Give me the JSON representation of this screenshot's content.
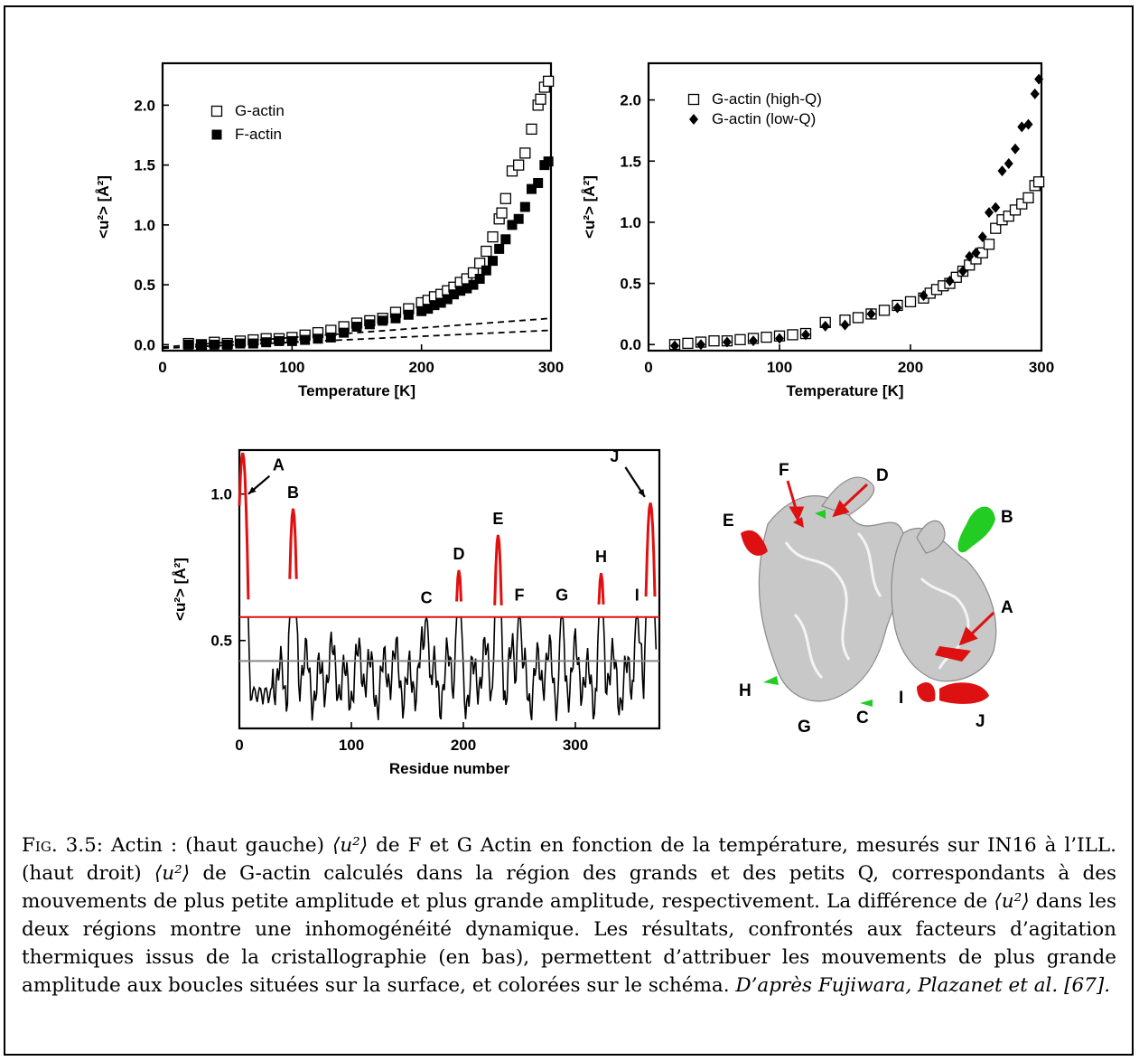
{
  "figure": {
    "caption_label": "Fig. 3.5:",
    "caption_parts": [
      "Actin : (haut gauche) ",
      " de F et G Actin en fonction de la température, mesurés sur IN16 à l’ILL. (haut droit) ",
      " de G-actin calculés dans la région des grands et des petits Q, correspondants à des mouvements de plus petite amplitude et plus grande amplitude, respectivement. La différence de ",
      " dans les deux régions montre une inhomogénéité dynamique. Les résultats, confrontés aux facteurs d’agitation thermiques issus de la cristallographie (en bas), permettent d’attribuer les mouvements de plus grande amplitude aux boucles situées sur la surface, et colorées sur le schéma. "
    ],
    "caption_symbol": "⟨u²⟩",
    "caption_citation": "D’après Fujiwara, Plazanet et al. [67]."
  },
  "chart_data": [
    {
      "type": "scatter",
      "xlabel": "Temperature [K]",
      "ylabel": "<u²> [Å²]",
      "xlim": [
        0,
        300
      ],
      "ylim": [
        -0.05,
        2.35
      ],
      "xticks": [
        "0",
        "100",
        "200",
        "300"
      ],
      "yticks": [
        "0.0",
        "0.5",
        "1.0",
        "1.5",
        "2.0"
      ],
      "legend_position": "top-left",
      "series": [
        {
          "name": "G-actin",
          "marker": "open-square",
          "x": [
            20,
            30,
            40,
            50,
            60,
            70,
            80,
            90,
            100,
            110,
            120,
            130,
            140,
            150,
            160,
            170,
            180,
            190,
            200,
            205,
            210,
            215,
            220,
            225,
            230,
            235,
            240,
            245,
            250,
            255,
            260,
            262,
            265,
            270,
            275,
            280,
            285,
            290,
            292,
            295,
            298
          ],
          "y": [
            0.01,
            0.0,
            0.02,
            0.01,
            0.03,
            0.04,
            0.05,
            0.05,
            0.06,
            0.08,
            0.1,
            0.12,
            0.15,
            0.18,
            0.2,
            0.22,
            0.27,
            0.3,
            0.35,
            0.37,
            0.4,
            0.42,
            0.45,
            0.48,
            0.52,
            0.55,
            0.6,
            0.68,
            0.78,
            0.9,
            1.05,
            1.1,
            1.22,
            1.45,
            1.5,
            1.6,
            1.8,
            2.0,
            2.05,
            2.15,
            2.2
          ]
        },
        {
          "name": "F-actin",
          "marker": "filled-square",
          "x": [
            20,
            30,
            40,
            50,
            60,
            70,
            80,
            90,
            100,
            110,
            120,
            130,
            140,
            150,
            160,
            170,
            180,
            190,
            200,
            205,
            210,
            215,
            220,
            225,
            230,
            235,
            240,
            245,
            250,
            255,
            260,
            265,
            270,
            275,
            280,
            285,
            290,
            295,
            298
          ],
          "y": [
            0.0,
            0.0,
            0.0,
            0.0,
            0.01,
            0.01,
            0.02,
            0.03,
            0.03,
            0.04,
            0.05,
            0.06,
            0.1,
            0.15,
            0.17,
            0.2,
            0.22,
            0.25,
            0.28,
            0.3,
            0.33,
            0.35,
            0.38,
            0.42,
            0.45,
            0.47,
            0.5,
            0.55,
            0.62,
            0.7,
            0.8,
            0.88,
            1.0,
            1.05,
            1.15,
            1.3,
            1.35,
            1.5,
            1.53
          ]
        }
      ],
      "dashed_lines": [
        {
          "x": [
            0,
            300
          ],
          "y": [
            -0.02,
            0.22
          ]
        },
        {
          "x": [
            0,
            300
          ],
          "y": [
            -0.03,
            0.12
          ]
        }
      ],
      "legend": [
        "G-actin",
        "F-actin"
      ]
    },
    {
      "type": "scatter",
      "xlabel": "Temperature [K]",
      "ylabel": "<u²> [Å²]",
      "xlim": [
        0,
        300
      ],
      "ylim": [
        -0.05,
        2.3
      ],
      "xticks": [
        "0",
        "100",
        "200",
        "300"
      ],
      "yticks": [
        "0.0",
        "0.5",
        "1.0",
        "1.5",
        "2.0"
      ],
      "legend_position": "top-left",
      "series": [
        {
          "name": "G-actin (high-Q)",
          "marker": "open-square",
          "x": [
            20,
            30,
            40,
            50,
            60,
            70,
            80,
            90,
            100,
            110,
            120,
            135,
            150,
            160,
            170,
            180,
            190,
            200,
            210,
            215,
            220,
            225,
            230,
            235,
            240,
            245,
            250,
            255,
            260,
            265,
            270,
            275,
            280,
            285,
            290,
            295,
            298
          ],
          "y": [
            0.0,
            0.01,
            0.02,
            0.03,
            0.03,
            0.04,
            0.05,
            0.06,
            0.07,
            0.08,
            0.09,
            0.18,
            0.2,
            0.22,
            0.25,
            0.28,
            0.32,
            0.35,
            0.38,
            0.42,
            0.45,
            0.48,
            0.5,
            0.55,
            0.6,
            0.65,
            0.7,
            0.75,
            0.82,
            0.95,
            1.02,
            1.05,
            1.1,
            1.15,
            1.2,
            1.3,
            1.33
          ]
        },
        {
          "name": "G-actin (low-Q)",
          "marker": "filled-diamond",
          "x": [
            20,
            40,
            60,
            80,
            100,
            120,
            135,
            150,
            170,
            190,
            210,
            230,
            240,
            245,
            250,
            255,
            260,
            265,
            270,
            275,
            280,
            285,
            290,
            295,
            298
          ],
          "y": [
            -0.01,
            0.0,
            0.02,
            0.03,
            0.05,
            0.08,
            0.15,
            0.16,
            0.25,
            0.3,
            0.4,
            0.52,
            0.6,
            0.72,
            0.75,
            0.88,
            1.08,
            1.12,
            1.42,
            1.48,
            1.6,
            1.78,
            1.8,
            2.05,
            2.17
          ]
        }
      ],
      "legend": [
        "G-actin (high-Q)",
        "G-actin (low-Q)"
      ]
    },
    {
      "type": "line",
      "xlabel": "Residue number",
      "ylabel": "<u²> [Å²]",
      "xlim": [
        0,
        375
      ],
      "ylim": [
        0.2,
        1.15
      ],
      "xticks": [
        "0",
        "100",
        "200",
        "300"
      ],
      "yticks": [
        "0.5",
        "1.0"
      ],
      "threshold_red": 0.58,
      "mean_gray": 0.43,
      "peaks": [
        {
          "label": "A",
          "x": 3,
          "y": 1.14,
          "arrow": true
        },
        {
          "label": "B",
          "x": 48,
          "y": 0.95
        },
        {
          "label": "C",
          "x": 167,
          "y": 0.59
        },
        {
          "label": "D",
          "x": 196,
          "y": 0.74
        },
        {
          "label": "E",
          "x": 231,
          "y": 0.86
        },
        {
          "label": "F",
          "x": 250,
          "y": 0.6
        },
        {
          "label": "G",
          "x": 288,
          "y": 0.6
        },
        {
          "label": "H",
          "x": 323,
          "y": 0.73
        },
        {
          "label": "I",
          "x": 355,
          "y": 0.6
        },
        {
          "label": "J",
          "x": 367,
          "y": 0.97,
          "arrow": true
        }
      ]
    }
  ],
  "structure": {
    "labels": [
      "A",
      "B",
      "C",
      "D",
      "E",
      "F",
      "G",
      "H",
      "I",
      "J"
    ],
    "highlight_red": "#dd1111",
    "highlight_green": "#22cc22"
  },
  "colors": {
    "red": "#e01010",
    "gray": "#888888",
    "black": "#000000"
  }
}
